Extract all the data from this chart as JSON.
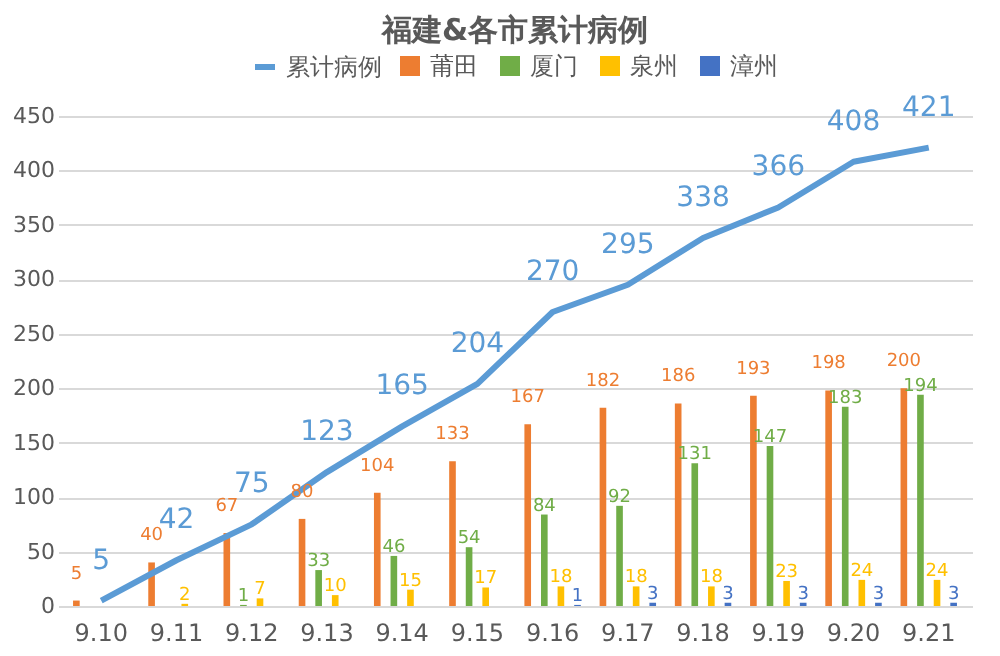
{
  "chart_data": {
    "type": "bar",
    "title": "福建&各市累计病例",
    "categories": [
      "9.10",
      "9.11",
      "9.12",
      "9.13",
      "9.14",
      "9.15",
      "9.16",
      "9.17",
      "9.18",
      "9.19",
      "9.20",
      "9.21"
    ],
    "series": [
      {
        "name": "莆田",
        "color": "#ed7d31",
        "values": [
          5,
          40,
          67,
          80,
          104,
          133,
          167,
          182,
          186,
          193,
          198,
          200
        ]
      },
      {
        "name": "厦门",
        "color": "#70ad47",
        "values": [
          null,
          null,
          1,
          33,
          46,
          54,
          84,
          92,
          131,
          147,
          183,
          194
        ]
      },
      {
        "name": "泉州",
        "color": "#ffc000",
        "values": [
          null,
          2,
          7,
          10,
          15,
          17,
          18,
          18,
          18,
          23,
          24,
          24
        ]
      },
      {
        "name": "漳州",
        "color": "#4472c4",
        "values": [
          null,
          null,
          null,
          null,
          null,
          null,
          1,
          3,
          3,
          3,
          3,
          3
        ]
      },
      {
        "name": "累计病例",
        "type": "line",
        "color": "#5b9bd5",
        "values": [
          5,
          42,
          75,
          123,
          165,
          204,
          270,
          295,
          338,
          366,
          408,
          421
        ]
      }
    ],
    "ylim": [
      0,
      450
    ],
    "yticks": [
      0,
      50,
      100,
      150,
      200,
      250,
      300,
      350,
      400,
      450
    ],
    "grid": "y",
    "legend": "top",
    "data_labels": true
  }
}
